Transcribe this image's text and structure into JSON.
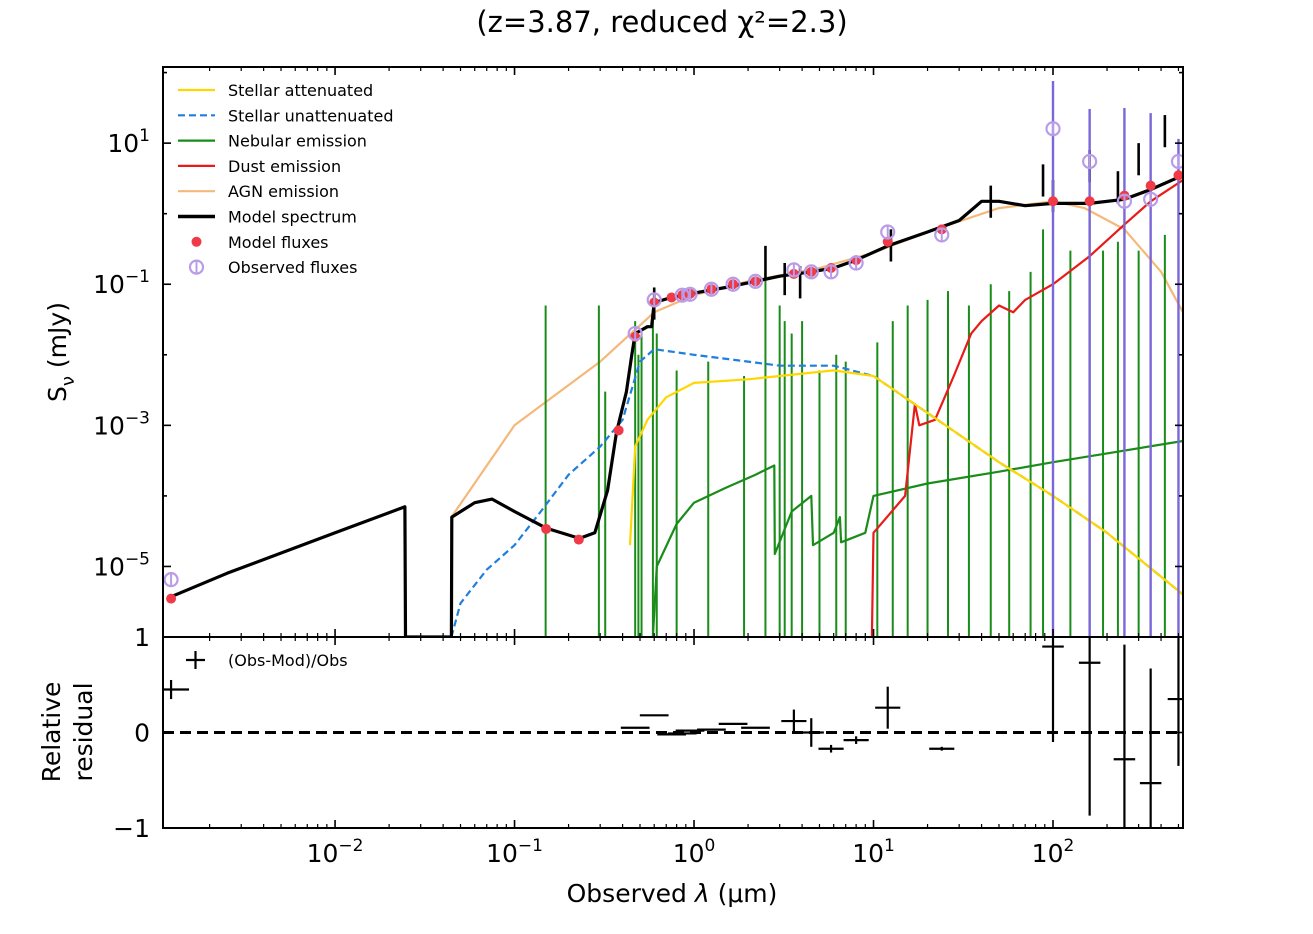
{
  "chart_data": [
    {
      "type": "line",
      "panel": "spectrum",
      "title": "(z=3.87, reduced χ²=2.3)",
      "xscale": "log",
      "yscale": "log",
      "xlim": [
        0.0011,
        530
      ],
      "ylim": [
        1e-06,
        120
      ],
      "ylabel_main": "S",
      "ylabel_sub": "ν",
      "ylabel_unit": " (mJy)",
      "yticks": [
        {
          "base": "10",
          "exp": "1",
          "value": 10
        },
        {
          "base": "10",
          "exp": "−1",
          "value": 0.1
        },
        {
          "base": "10",
          "exp": "−3",
          "value": 0.001
        },
        {
          "base": "10",
          "exp": "−5",
          "value": 1e-05
        }
      ],
      "legend_location": "top-left",
      "legend": [
        {
          "label": "Stellar attenuated",
          "color": "#FFD700",
          "style": "solid"
        },
        {
          "label": "Stellar unattenuated",
          "color": "#1E7FE0",
          "style": "dashed"
        },
        {
          "label": "Nebular emission",
          "color": "#1A8C1A",
          "style": "solid"
        },
        {
          "label": "Dust emission",
          "color": "#E81A1A",
          "style": "solid"
        },
        {
          "label": "AGN emission",
          "color": "#F5B87A",
          "style": "solid"
        },
        {
          "label": "Model spectrum",
          "color": "#000000",
          "style": "thick"
        },
        {
          "label": "Model fluxes",
          "color": "#F03A48",
          "style": "dot"
        },
        {
          "label": "Observed fluxes",
          "color": "#B89CE8",
          "style": "circle"
        }
      ],
      "series": [
        {
          "name": "Model spectrum",
          "points": [
            [
              0.00118,
              3.6e-06
            ],
            [
              0.0025,
              8e-06
            ],
            [
              0.01,
              3e-05
            ],
            [
              0.0245,
              7e-05
            ],
            [
              0.0247,
              1e-06
            ],
            [
              0.0445,
              1e-06
            ],
            [
              0.0447,
              5e-05
            ],
            [
              0.06,
              8e-05
            ],
            [
              0.075,
              9e-05
            ],
            [
              0.1,
              6e-05
            ],
            [
              0.15,
              3.5e-05
            ],
            [
              0.23,
              2.5e-05
            ],
            [
              0.28,
              3e-05
            ],
            [
              0.33,
              0.00012
            ],
            [
              0.37,
              0.0008
            ],
            [
              0.42,
              0.003
            ],
            [
              0.45,
              0.01
            ],
            [
              0.47,
              0.02
            ],
            [
              0.55,
              0.025
            ],
            [
              0.58,
              0.025
            ],
            [
              0.6,
              0.055
            ],
            [
              0.75,
              0.065
            ],
            [
              1.0,
              0.075
            ],
            [
              1.5,
              0.09
            ],
            [
              2.2,
              0.11
            ],
            [
              3.0,
              0.13
            ],
            [
              4.5,
              0.15
            ],
            [
              6,
              0.17
            ],
            [
              8,
              0.22
            ],
            [
              12,
              0.35
            ],
            [
              20,
              0.55
            ],
            [
              30,
              0.8
            ],
            [
              40,
              1.5
            ],
            [
              50,
              1.5
            ],
            [
              70,
              1.3
            ],
            [
              100,
              1.4
            ],
            [
              160,
              1.4
            ],
            [
              250,
              1.6
            ],
            [
              350,
              2.2
            ],
            [
              530,
              3.5
            ]
          ]
        },
        {
          "name": "Stellar unattenuated",
          "points": [
            [
              0.0445,
              1e-06
            ],
            [
              0.05,
              3e-06
            ],
            [
              0.07,
              9e-06
            ],
            [
              0.1,
              2e-05
            ],
            [
              0.14,
              6e-05
            ],
            [
              0.2,
              0.0002
            ],
            [
              0.3,
              0.0005
            ],
            [
              0.4,
              0.0012
            ],
            [
              0.5,
              0.008
            ],
            [
              0.6,
              0.012
            ],
            [
              1.0,
              0.01
            ],
            [
              2.0,
              0.008
            ],
            [
              3.0,
              0.007
            ],
            [
              6.0,
              0.007
            ],
            [
              10,
              0.005
            ],
            [
              20,
              0.0015
            ],
            [
              50,
              0.0003
            ],
            [
              100,
              0.0001
            ],
            [
              200,
              3e-05
            ],
            [
              530,
              4e-06
            ]
          ]
        },
        {
          "name": "Stellar attenuated",
          "points": [
            [
              0.44,
              2e-05
            ],
            [
              0.47,
              0.0005
            ],
            [
              0.55,
              0.0012
            ],
            [
              0.7,
              0.0025
            ],
            [
              1.0,
              0.004
            ],
            [
              2.0,
              0.0045
            ],
            [
              3.0,
              0.005
            ],
            [
              6.0,
              0.006
            ],
            [
              10,
              0.005
            ],
            [
              20,
              0.0015
            ],
            [
              50,
              0.0003
            ],
            [
              100,
              0.0001
            ],
            [
              200,
              3e-05
            ],
            [
              530,
              4e-06
            ]
          ]
        },
        {
          "name": "Nebular emission",
          "points": [
            [
              0.59,
              1e-06
            ],
            [
              0.62,
              1e-05
            ],
            [
              0.8,
              4e-05
            ],
            [
              1.0,
              8e-05
            ],
            [
              1.5,
              0.00013
            ],
            [
              2.2,
              0.0002
            ],
            [
              2.8,
              0.00027
            ],
            [
              2.82,
              1.5e-05
            ],
            [
              3.5,
              6e-05
            ],
            [
              4.5,
              0.0001
            ],
            [
              4.6,
              2e-05
            ],
            [
              6,
              3e-05
            ],
            [
              6.5,
              5e-05
            ],
            [
              6.6,
              2.2e-05
            ],
            [
              9,
              3e-05
            ],
            [
              10,
              0.0001
            ],
            [
              20,
              0.00015
            ],
            [
              50,
              0.00022
            ],
            [
              100,
              0.0003
            ],
            [
              200,
              0.0004
            ],
            [
              530,
              0.0006
            ]
          ]
        },
        {
          "name": "Dust emission",
          "points": [
            [
              9.8,
              1e-06
            ],
            [
              10,
              3e-05
            ],
            [
              15,
              0.0001
            ],
            [
              17,
              0.002
            ],
            [
              18,
              0.001
            ],
            [
              22,
              0.0012
            ],
            [
              28,
              0.005
            ],
            [
              35,
              0.02
            ],
            [
              40,
              0.03
            ],
            [
              50,
              0.05
            ],
            [
              60,
              0.04
            ],
            [
              70,
              0.06
            ],
            [
              100,
              0.1
            ],
            [
              160,
              0.25
            ],
            [
              250,
              0.7
            ],
            [
              350,
              1.5
            ],
            [
              530,
              3.0
            ]
          ]
        },
        {
          "name": "AGN emission",
          "points": [
            [
              0.0445,
              5e-05
            ],
            [
              0.1,
              0.001
            ],
            [
              0.3,
              0.008
            ],
            [
              0.6,
              0.04
            ],
            [
              1.0,
              0.07
            ],
            [
              2.0,
              0.11
            ],
            [
              5.0,
              0.17
            ],
            [
              10,
              0.28
            ],
            [
              20,
              0.55
            ],
            [
              50,
              1.2
            ],
            [
              100,
              1.5
            ],
            [
              150,
              1.2
            ],
            [
              250,
              0.6
            ],
            [
              400,
              0.15
            ],
            [
              530,
              0.04
            ]
          ]
        }
      ],
      "nebular_lines": [
        {
          "x": 0.149,
          "y": 0.05
        },
        {
          "x": 0.295,
          "y": 0.05
        },
        {
          "x": 0.32,
          "y": 0.003
        },
        {
          "x": 0.47,
          "y": 0.03
        },
        {
          "x": 0.49,
          "y": 0.01
        },
        {
          "x": 0.51,
          "y": 0.02
        },
        {
          "x": 0.59,
          "y": 0.04
        },
        {
          "x": 0.62,
          "y": 0.02
        },
        {
          "x": 0.8,
          "y": 0.006
        },
        {
          "x": 1.2,
          "y": 0.008
        },
        {
          "x": 1.9,
          "y": 0.005
        },
        {
          "x": 2.5,
          "y": 0.15
        },
        {
          "x": 3.0,
          "y": 0.05
        },
        {
          "x": 3.2,
          "y": 0.03
        },
        {
          "x": 3.5,
          "y": 0.02
        },
        {
          "x": 4.0,
          "y": 0.03
        },
        {
          "x": 5.0,
          "y": 0.006
        },
        {
          "x": 6.2,
          "y": 0.01
        },
        {
          "x": 7.0,
          "y": 0.008
        },
        {
          "x": 10.5,
          "y": 0.015
        },
        {
          "x": 12.8,
          "y": 0.03
        },
        {
          "x": 15.5,
          "y": 0.05
        },
        {
          "x": 20,
          "y": 0.06
        },
        {
          "x": 26,
          "y": 0.08
        },
        {
          "x": 34,
          "y": 0.05
        },
        {
          "x": 45,
          "y": 0.1
        },
        {
          "x": 57,
          "y": 0.08
        },
        {
          "x": 75,
          "y": 0.15
        },
        {
          "x": 88,
          "y": 0.6
        },
        {
          "x": 100,
          "y": 0.5
        },
        {
          "x": 125,
          "y": 0.3
        },
        {
          "x": 160,
          "y": 0.8
        },
        {
          "x": 190,
          "y": 0.3
        },
        {
          "x": 230,
          "y": 0.4
        },
        {
          "x": 300,
          "y": 0.3
        },
        {
          "x": 420,
          "y": 0.5
        }
      ],
      "model_fluxes": [
        {
          "x": 0.00122,
          "y": 3.5e-06
        },
        {
          "x": 0.15,
          "y": 3.4e-05
        },
        {
          "x": 0.228,
          "y": 2.4e-05
        },
        {
          "x": 0.38,
          "y": 0.00085
        },
        {
          "x": 0.47,
          "y": 0.018
        },
        {
          "x": 0.6,
          "y": 0.055
        },
        {
          "x": 0.75,
          "y": 0.065
        },
        {
          "x": 0.86,
          "y": 0.07
        },
        {
          "x": 0.95,
          "y": 0.073
        },
        {
          "x": 1.25,
          "y": 0.085
        },
        {
          "x": 1.65,
          "y": 0.1
        },
        {
          "x": 2.2,
          "y": 0.11
        },
        {
          "x": 3.6,
          "y": 0.14
        },
        {
          "x": 4.5,
          "y": 0.15
        },
        {
          "x": 5.8,
          "y": 0.17
        },
        {
          "x": 8.0,
          "y": 0.22
        },
        {
          "x": 12,
          "y": 0.4
        },
        {
          "x": 24,
          "y": 0.6
        },
        {
          "x": 100,
          "y": 1.5
        },
        {
          "x": 160,
          "y": 1.5
        },
        {
          "x": 250,
          "y": 1.8
        },
        {
          "x": 350,
          "y": 2.5
        },
        {
          "x": 500,
          "y": 3.5
        }
      ],
      "observed_fluxes": [
        {
          "x": 0.00122,
          "y": 6.5e-06,
          "err": 0
        },
        {
          "x": 0.47,
          "y": 0.02,
          "err": 0
        },
        {
          "x": 0.6,
          "y": 0.06,
          "err": 0
        },
        {
          "x": 0.86,
          "y": 0.07,
          "err": 0
        },
        {
          "x": 0.95,
          "y": 0.072,
          "err": 0
        },
        {
          "x": 1.25,
          "y": 0.085,
          "err": 0
        },
        {
          "x": 1.65,
          "y": 0.1,
          "err": 0
        },
        {
          "x": 2.2,
          "y": 0.11,
          "err": 0
        },
        {
          "x": 3.6,
          "y": 0.16,
          "err": 0
        },
        {
          "x": 4.5,
          "y": 0.15,
          "err": 0
        },
        {
          "x": 5.8,
          "y": 0.15,
          "err": 0
        },
        {
          "x": 8.0,
          "y": 0.2,
          "err": 0
        },
        {
          "x": 12,
          "y": 0.55,
          "err": 0
        },
        {
          "x": 24,
          "y": 0.5,
          "err": 0
        },
        {
          "x": 100,
          "y": 16,
          "err": 60
        },
        {
          "x": 160,
          "y": 5.5,
          "err": 25
        },
        {
          "x": 250,
          "y": 1.5,
          "err": 30
        },
        {
          "x": 350,
          "y": 1.6,
          "err": 25
        },
        {
          "x": 500,
          "y": 5.5,
          "err": 6
        }
      ]
    },
    {
      "type": "scatter",
      "panel": "residual",
      "xscale": "log",
      "xlim": [
        0.0011,
        530
      ],
      "ylim": [
        -1,
        1
      ],
      "xlabel_main": "Observed ",
      "xlabel_lambda": "λ",
      "xlabel_unit": " (μm)",
      "ylabel_line1": "Relative",
      "ylabel_line2": "residual",
      "yticks": [
        {
          "label": "1",
          "value": 1
        },
        {
          "label": "0",
          "value": 0
        },
        {
          "label": "−1",
          "value": -1
        }
      ],
      "xticks": [
        {
          "base": "10",
          "exp": "−2",
          "value": 0.01
        },
        {
          "base": "10",
          "exp": "−1",
          "value": 0.1
        },
        {
          "base": "10",
          "exp": "0",
          "value": 1
        },
        {
          "base": "10",
          "exp": "1",
          "value": 10
        },
        {
          "base": "10",
          "exp": "2",
          "value": 100
        }
      ],
      "legend": [
        {
          "label": "(Obs-Mod)/Obs",
          "marker": "+"
        }
      ],
      "points": [
        {
          "x": 0.00122,
          "y": 0.45,
          "err": 0.1,
          "w": 0.1
        },
        {
          "x": 0.47,
          "y": 0.05,
          "err": 0,
          "w": 0.08
        },
        {
          "x": 0.6,
          "y": 0.18,
          "err": 0,
          "w": 0.08
        },
        {
          "x": 0.75,
          "y": -0.02,
          "err": 0,
          "w": 0.08
        },
        {
          "x": 0.86,
          "y": -0.01,
          "err": 0,
          "w": 0.08
        },
        {
          "x": 0.95,
          "y": 0.02,
          "err": 0,
          "w": 0.08
        },
        {
          "x": 1.25,
          "y": 0.03,
          "err": 0,
          "w": 0.08
        },
        {
          "x": 1.65,
          "y": 0.09,
          "err": 0,
          "w": 0.08
        },
        {
          "x": 2.2,
          "y": 0.05,
          "err": 0,
          "w": 0.08
        },
        {
          "x": 3.6,
          "y": 0.12,
          "err": 0.12,
          "w": 0.07
        },
        {
          "x": 4.5,
          "y": 0.0,
          "err": 0.15,
          "w": 0.07
        },
        {
          "x": 5.8,
          "y": -0.17,
          "err": 0.04,
          "w": 0.07
        },
        {
          "x": 8.0,
          "y": -0.08,
          "err": 0.04,
          "w": 0.07
        },
        {
          "x": 12,
          "y": 0.26,
          "err": 0.22,
          "w": 0.07
        },
        {
          "x": 24,
          "y": -0.17,
          "err": 0.02,
          "w": 0.07
        },
        {
          "x": 100,
          "y": 0.9,
          "err": 1.0,
          "w": 0.06
        },
        {
          "x": 160,
          "y": 0.73,
          "err": 1.6,
          "w": 0.06
        },
        {
          "x": 250,
          "y": -0.28,
          "err": 1.2,
          "w": 0.06
        },
        {
          "x": 350,
          "y": -0.53,
          "err": 1.2,
          "w": 0.06
        },
        {
          "x": 500,
          "y": 0.35,
          "err": 0.7,
          "w": 0.06
        }
      ]
    }
  ]
}
